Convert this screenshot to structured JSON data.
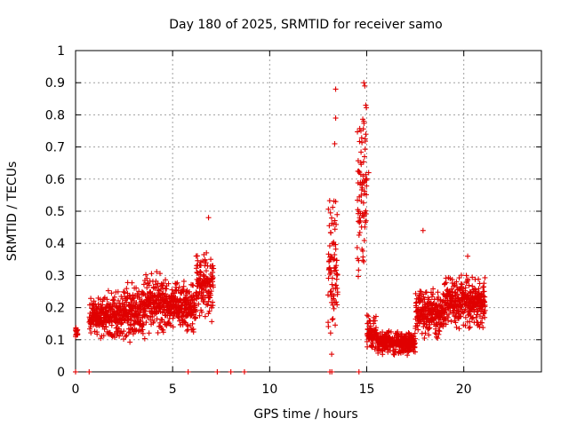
{
  "chart_data": {
    "type": "scatter",
    "title": "Day 180 of 2025, SRMTID for receiver samo",
    "xlabel": "GPS time / hours",
    "ylabel": "SRMTID / TECUs",
    "xlim": [
      0,
      24
    ],
    "ylim": [
      0,
      1
    ],
    "xticks": [
      0,
      5,
      10,
      15,
      20
    ],
    "yticks": [
      0,
      0.1,
      0.2,
      0.3,
      0.4,
      0.5,
      0.6,
      0.7,
      0.8,
      0.9,
      1
    ],
    "ytick_labels": [
      "0",
      "0.1",
      "0.2",
      "0.3",
      "0.4",
      "0.5",
      "0.6",
      "0.7",
      "0.8",
      "0.9",
      "1"
    ],
    "xtick_labels": [
      "0",
      "5",
      "10",
      "15",
      "20"
    ],
    "grid": true,
    "marker": "+",
    "color": "#e00000",
    "series": [
      {
        "name": "SRMTID",
        "segments": [
          {
            "x_start": 0.0,
            "x_end": 0.1,
            "y_mid": 0.12,
            "y_amp": 0.02
          },
          {
            "x_start": 0.7,
            "x_end": 1.6,
            "y_mid": 0.17,
            "y_amp": 0.07
          },
          {
            "x_start": 1.6,
            "x_end": 2.6,
            "y_mid": 0.18,
            "y_amp": 0.08
          },
          {
            "x_start": 2.6,
            "x_end": 3.6,
            "y_mid": 0.19,
            "y_amp": 0.1
          },
          {
            "x_start": 3.6,
            "x_end": 4.6,
            "y_mid": 0.22,
            "y_amp": 0.1
          },
          {
            "x_start": 4.6,
            "x_end": 5.6,
            "y_mid": 0.21,
            "y_amp": 0.08
          },
          {
            "x_start": 5.6,
            "x_end": 6.2,
            "y_mid": 0.2,
            "y_amp": 0.08
          },
          {
            "x_start": 6.2,
            "x_end": 7.1,
            "y_mid": 0.27,
            "y_amp": 0.12
          },
          {
            "x_start": 13.0,
            "x_end": 13.5,
            "y_mid": 0.3,
            "y_amp": 0.25
          },
          {
            "x_start": 14.5,
            "x_end": 15.0,
            "y_mid": 0.55,
            "y_amp": 0.3
          },
          {
            "x_start": 15.0,
            "x_end": 15.5,
            "y_mid": 0.12,
            "y_amp": 0.06
          },
          {
            "x_start": 15.5,
            "x_end": 17.5,
            "y_mid": 0.09,
            "y_amp": 0.04
          },
          {
            "x_start": 17.5,
            "x_end": 19.0,
            "y_mid": 0.18,
            "y_amp": 0.08
          },
          {
            "x_start": 19.0,
            "x_end": 21.1,
            "y_mid": 0.22,
            "y_amp": 0.09
          }
        ],
        "highlights": [
          {
            "x": 13.4,
            "y": 0.88
          },
          {
            "x": 13.4,
            "y": 0.79
          },
          {
            "x": 13.35,
            "y": 0.71
          },
          {
            "x": 13.4,
            "y": 0.53
          },
          {
            "x": 14.85,
            "y": 0.9
          },
          {
            "x": 14.9,
            "y": 0.89
          },
          {
            "x": 14.95,
            "y": 0.83
          },
          {
            "x": 14.85,
            "y": 0.78
          },
          {
            "x": 15.1,
            "y": 0.62
          },
          {
            "x": 17.9,
            "y": 0.44
          },
          {
            "x": 6.85,
            "y": 0.48
          },
          {
            "x": 20.2,
            "y": 0.36
          },
          {
            "x": 0.0,
            "y": 0.13
          },
          {
            "x": 0.0,
            "y": 0.11
          }
        ],
        "zero_points": [
          0.0,
          0.7,
          5.8,
          7.3,
          8.0,
          8.7,
          13.1,
          13.2,
          14.6
        ]
      }
    ]
  }
}
